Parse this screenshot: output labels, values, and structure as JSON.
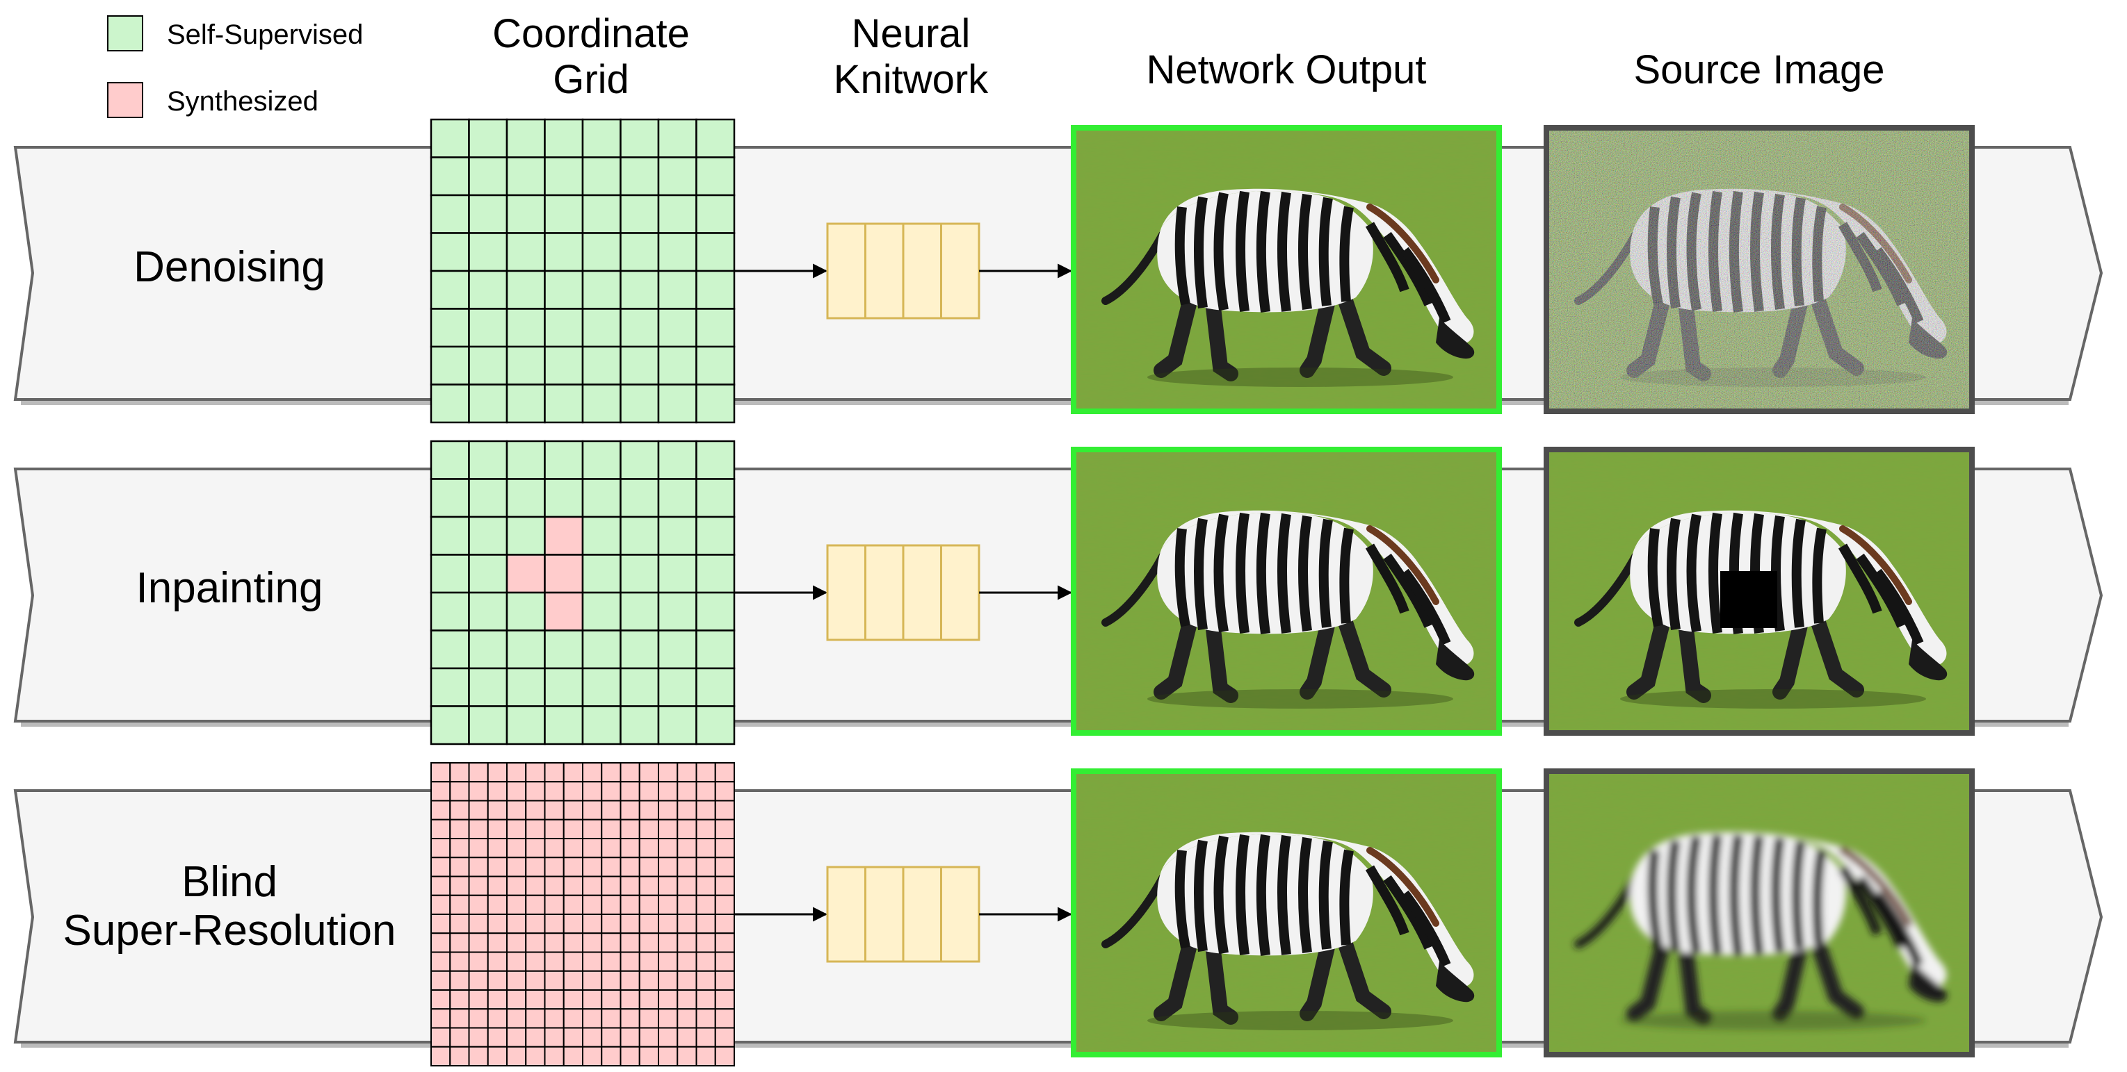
{
  "legend": [
    {
      "label": "Self-Supervised",
      "color": "#ccf5cc"
    },
    {
      "label": "Synthesized",
      "color": "#ffcccc"
    }
  ],
  "headers": {
    "grid_line1": "Coordinate",
    "grid_line2": "Grid",
    "net_line1": "Neural",
    "net_line2": "Knitwork",
    "output": "Network Output",
    "source": "Source Image"
  },
  "rows": [
    {
      "task_line1": "Denoising",
      "task_line2": "",
      "grid_cells": 8,
      "synthesized_cells": [],
      "all_synthesized": false,
      "source_effect": "noise"
    },
    {
      "task_line1": "Inpainting",
      "task_line2": "",
      "grid_cells": 8,
      "synthesized_cells": [
        [
          2,
          3
        ],
        [
          3,
          2
        ],
        [
          3,
          3
        ],
        [
          4,
          3
        ]
      ],
      "all_synthesized": false,
      "source_effect": "mask"
    },
    {
      "task_line1": "Blind",
      "task_line2": "Super-Resolution",
      "grid_cells": 16,
      "synthesized_cells": [],
      "all_synthesized": true,
      "source_effect": "blur"
    }
  ],
  "colors": {
    "self_supervised": "#ccf5cc",
    "synthesized": "#ffcccc",
    "knitwork_fill": "#fff2cc",
    "knitwork_stroke": "#d6b656",
    "output_border": "#33ee33",
    "source_border": "#4d4d4d",
    "band_fill": "#f5f5f5",
    "band_stroke": "#666666",
    "grass": "#7aa83e"
  }
}
